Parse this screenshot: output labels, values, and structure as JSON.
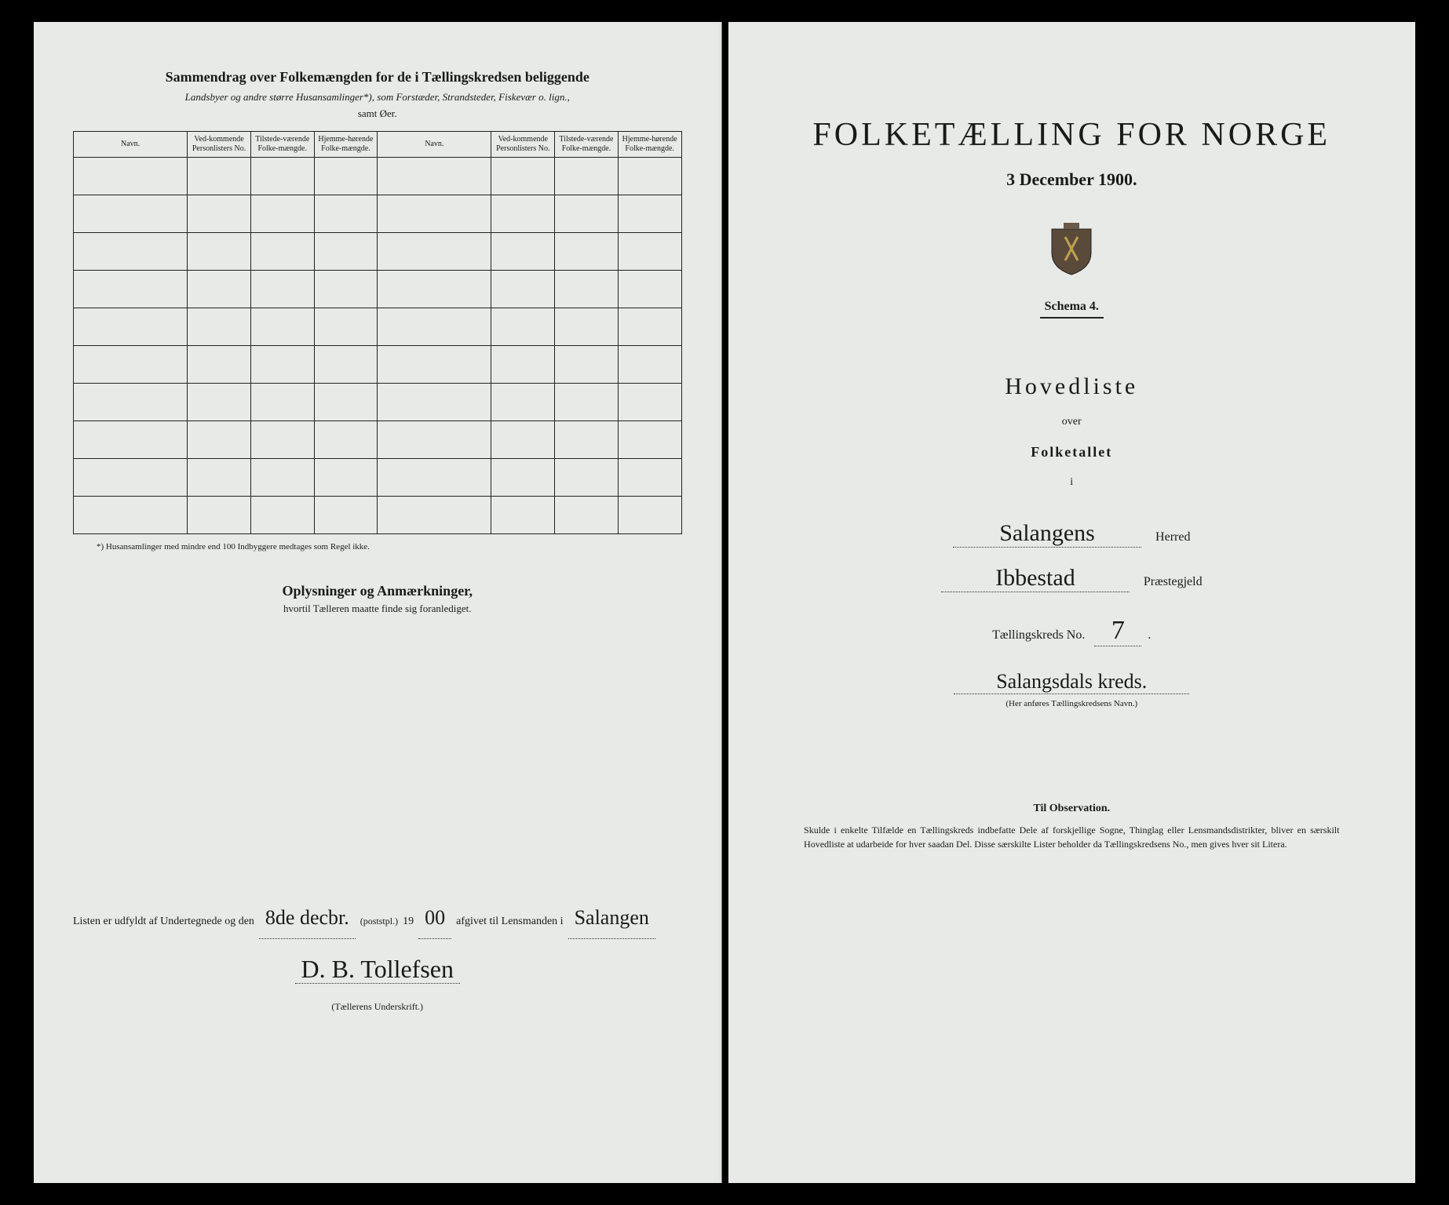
{
  "left": {
    "title": "Sammendrag over Folkemængden for de i Tællingskredsen beliggende",
    "subtitle": "Landsbyer og andre større Husansamlinger*), som Forstæder, Strandsteder, Fiskevær o. lign.,",
    "subtitle2": "samt Øer.",
    "table": {
      "headers": {
        "navn": "Navn.",
        "vedk": "Ved-kommende Personlisters No.",
        "tilstede": "Tilstede-værende Folke-mængde.",
        "hjemme": "Hjemme-hørende Folke-mængde."
      },
      "row_count": 10
    },
    "footnote": "*) Husansamlinger med mindre end 100 Indbyggere medtages som Regel ikke.",
    "oplysninger_title": "Oplysninger og Anmærkninger,",
    "oplysninger_sub": "hvortil Tælleren maatte finde sig foranlediget.",
    "sig": {
      "prefix": "Listen er udfyldt af Undertegnede og den",
      "date_day": "8de decbr.",
      "annotation": "(poststpl.)",
      "year_prefix": "19",
      "year_rest": "00",
      "middle": "afgivet til Lensmanden i",
      "place": "Salangen",
      "name": "D. B. Tollefsen",
      "caption": "(Tællerens Underskrift.)"
    }
  },
  "right": {
    "main_title": "FOLKETÆLLING FOR NORGE",
    "date": "3 December 1900.",
    "schema": "Schema 4.",
    "hovedliste": "Hovedliste",
    "over": "over",
    "folketallet": "Folketallet",
    "i": "i",
    "herred_value": "Salangens",
    "herred_label": "Herred",
    "praestegjeld_value": "Ibbestad",
    "praestegjeld_label": "Præstegjeld",
    "kreds_label": "Tællingskreds No.",
    "kreds_no": "7",
    "kreds_name": "Salangsdals kreds.",
    "kreds_caption": "(Her anføres Tællingskredsens Navn.)",
    "obs_title": "Til Observation.",
    "obs_body": "Skulde i enkelte Tilfælde en Tællingskreds indbefatte Dele af forskjellige Sogne, Thinglag eller Lensmandsdistrikter, bliver en særskilt Hovedliste at udarbeide for hver saadan Del. Disse særskilte Lister beholder da Tællingskredsens No., men gives hver sit Litera."
  },
  "style": {
    "page_bg": "#e8eae7",
    "text_color": "#1a1a1a",
    "border_color": "#222222"
  }
}
